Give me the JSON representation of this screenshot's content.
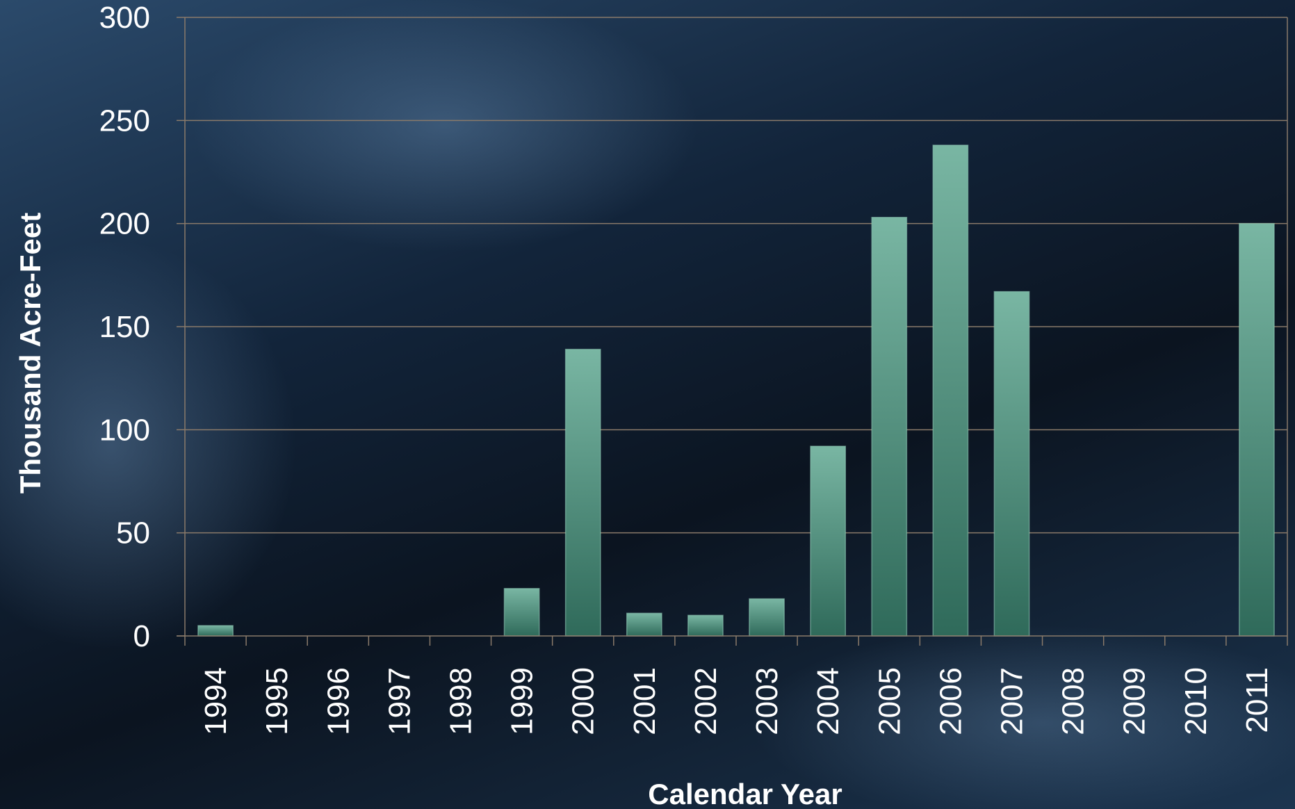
{
  "chart_data": {
    "type": "bar",
    "title": "",
    "xlabel": "Calendar Year",
    "ylabel": "Thousand Acre-Feet",
    "ylim": [
      0,
      300
    ],
    "yticks": [
      0,
      50,
      100,
      150,
      200,
      250,
      300
    ],
    "grid": true,
    "categories": [
      "1994",
      "1995",
      "1996",
      "1997",
      "1998",
      "1999",
      "2000",
      "2001",
      "2002",
      "2003",
      "2004",
      "2005",
      "2006",
      "2007",
      "2008",
      "2009",
      "2010",
      "2011"
    ],
    "values": [
      5,
      0,
      0,
      0,
      0,
      23,
      139,
      11,
      10,
      18,
      92,
      203,
      238,
      167,
      0,
      0,
      0,
      200
    ],
    "colors": {
      "bar_top": "#76b3a0",
      "bar_bottom": "#2f6a5a",
      "grid": "#8a7a6a",
      "text": "#ffffff"
    }
  }
}
